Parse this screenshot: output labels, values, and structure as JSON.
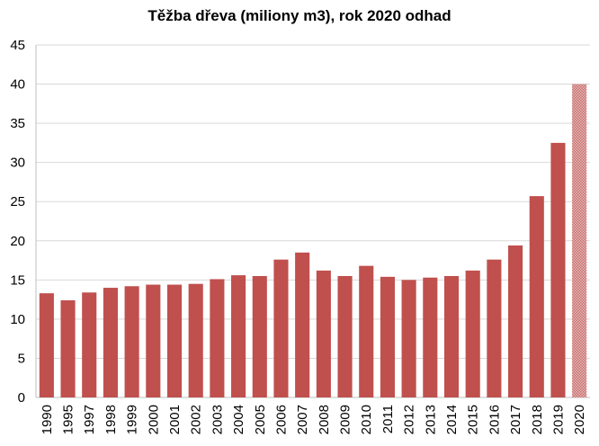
{
  "chart_data": {
    "type": "bar",
    "title": "Těžba dřeva (miliony m3), rok 2020 odhad",
    "xlabel": "",
    "ylabel": "",
    "ylim": [
      0,
      45
    ],
    "yticks": [
      0,
      5,
      10,
      15,
      20,
      25,
      30,
      35,
      40,
      45
    ],
    "grid": true,
    "categories": [
      "1990",
      "1995",
      "1997",
      "1998",
      "1999",
      "2000",
      "2001",
      "2002",
      "2003",
      "2004",
      "2005",
      "2006",
      "2007",
      "2008",
      "2009",
      "2010",
      "2011",
      "2012",
      "2013",
      "2014",
      "2015",
      "2016",
      "2017",
      "2018",
      "2019",
      "2020"
    ],
    "values": [
      13.3,
      12.4,
      13.4,
      14.0,
      14.2,
      14.4,
      14.4,
      14.5,
      15.1,
      15.6,
      15.5,
      17.6,
      18.5,
      16.2,
      15.5,
      16.8,
      15.4,
      15.0,
      15.3,
      15.5,
      16.2,
      17.6,
      19.4,
      25.7,
      32.5,
      40.0
    ],
    "estimated_categories": [
      "2020"
    ],
    "colors": {
      "bar": "#c0504d",
      "estimate": "#d39a98",
      "grid": "#d9d9d9"
    }
  }
}
